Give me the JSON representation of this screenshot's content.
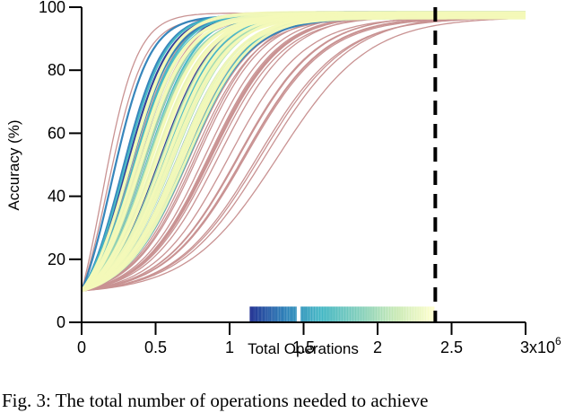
{
  "chart_data": {
    "type": "line",
    "title": "",
    "xlabel": "Total Operations",
    "ylabel": "Accuracy (%)",
    "x_multiplier_label": "x10",
    "x_multiplier_exponent": "6",
    "xlim": [
      0,
      3
    ],
    "ylim": [
      0,
      100
    ],
    "x_ticks": [
      "0",
      "0.5",
      "1",
      "1.5",
      "2",
      "2.5",
      "3"
    ],
    "y_ticks": [
      "0",
      "20",
      "40",
      "60",
      "80",
      "100"
    ],
    "grid": false,
    "legend": "none",
    "description": "Many sigmoid accuracy-vs-operations learning curves starting at 10% and saturating near 97-98%. Curves colored by a blue-teal-yellow colormap plus a set of pinkish-brown reference curves. A rug of colored ticks near y=0 marks operations needed per configuration; a vertical dashed black line marks the threshold.",
    "start_accuracy": 10,
    "final_accuracy_range": [
      96.5,
      98.5
    ],
    "threshold_line_x": 2.39,
    "rug": {
      "x_min": 1.14,
      "x_max": 2.38,
      "y_top": 5,
      "colormap": [
        "#253494",
        "#2c7fb8",
        "#41b6c4",
        "#7fcdbb",
        "#c7e9b4",
        "#ffffcc"
      ]
    },
    "series_groups": [
      {
        "name": "reference curves",
        "color": "#c99393",
        "midpoint_range": [
          0.12,
          1.35
        ],
        "count": 40
      },
      {
        "name": "colormap curves (dark blue)",
        "color": "#253494",
        "midpoint_range": [
          0.28,
          0.62
        ],
        "count": 6
      },
      {
        "name": "colormap curves (blue)",
        "color": "#2c7fb8",
        "midpoint_range": [
          0.18,
          0.74
        ],
        "count": 8
      },
      {
        "name": "colormap curves (teal)",
        "color": "#41b6c4",
        "midpoint_range": [
          0.22,
          0.78
        ],
        "count": 10
      },
      {
        "name": "colormap curves (green)",
        "color": "#a1dab4",
        "midpoint_range": [
          0.35,
          0.7
        ],
        "count": 14
      },
      {
        "name": "colormap curves (yellow)",
        "color": "#f3f9b8",
        "midpoint_range": [
          0.3,
          0.72
        ],
        "count": 20
      }
    ]
  },
  "caption": "Fig. 3: The total number of operations needed to achieve"
}
